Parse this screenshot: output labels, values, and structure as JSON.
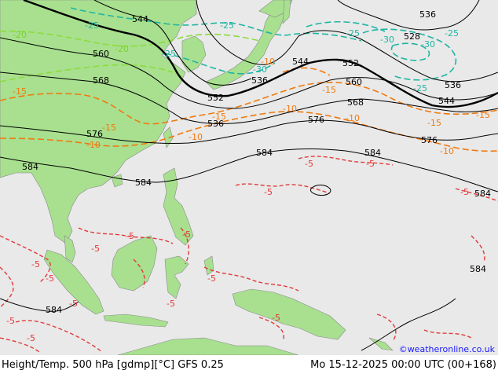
{
  "map": {
    "title": "Height/Temp. 500 hPa [gdmp][°C] GFS 0.25",
    "valid_time": "Mo 15-12-2025 00:00 UTC (00+168)",
    "credit": "©weatheronline.co.uk",
    "colors": {
      "land": "#a8e08f",
      "sea": "#e9e9e9",
      "height_contour": "#000000",
      "temp_green": "#8edb3d",
      "temp_teal": "#1fb5a2",
      "temp_orange": "#ef7a0f",
      "temp_red": "#e23a3a",
      "credit_text": "#1a1aff"
    },
    "height_labels": [
      "544",
      "560",
      "568",
      "576",
      "584",
      "552",
      "536",
      "544",
      "552",
      "560",
      "568",
      "576",
      "584",
      "536",
      "528",
      "536",
      "544",
      "576",
      "584",
      "584",
      "584",
      "584",
      "536",
      "584"
    ],
    "temp_labels": {
      "green": [
        "-20",
        "-25",
        "-20"
      ],
      "teal": [
        "-25",
        "-25",
        "-30",
        "-25",
        "-30",
        "-25",
        "-25",
        "-30"
      ],
      "orange": [
        "-15",
        "-15",
        "-10",
        "-15",
        "-10",
        "-15",
        "-10",
        "-15",
        "-10",
        "-15",
        "-10",
        "-10"
      ],
      "red": [
        "-5",
        "-5",
        "-5",
        "-5",
        "-5",
        "-5",
        "-5",
        "-5",
        "-5",
        "-5",
        "-5",
        "-5",
        "-5",
        "-5",
        "-5"
      ]
    }
  }
}
